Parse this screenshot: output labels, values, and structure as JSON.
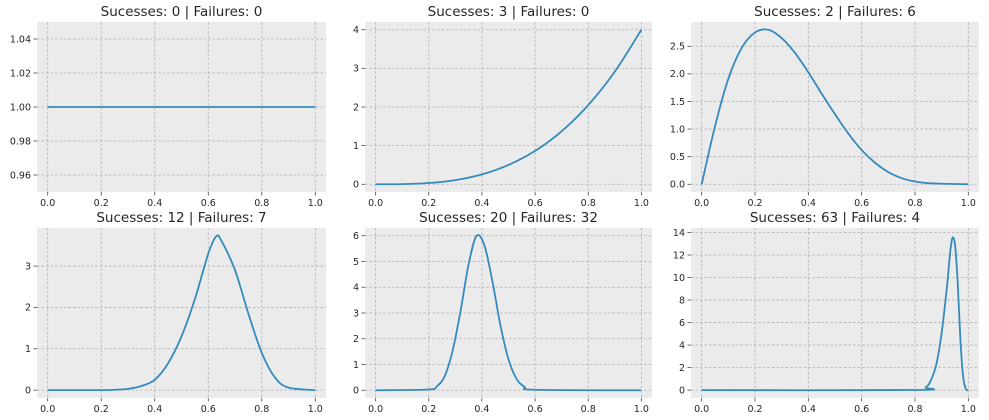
{
  "chart_data": [
    {
      "type": "line",
      "title": "Sucesses: 0 | Failures: 0",
      "successes": 0,
      "failures": 0,
      "xlim": [
        0.0,
        1.0
      ],
      "ylim": [
        0.95,
        1.05
      ],
      "xticks": [
        "0.0",
        "0.2",
        "0.4",
        "0.6",
        "0.8",
        "1.0"
      ],
      "yticks": [
        "0.96",
        "0.98",
        "1.00",
        "1.02",
        "1.04"
      ],
      "x": [
        0.0,
        0.1,
        0.2,
        0.3,
        0.4,
        0.5,
        0.6,
        0.7,
        0.8,
        0.9,
        1.0
      ],
      "y": [
        1.0,
        1.0,
        1.0,
        1.0,
        1.0,
        1.0,
        1.0,
        1.0,
        1.0,
        1.0,
        1.0
      ],
      "grid": true,
      "color": "#348abd"
    },
    {
      "type": "line",
      "title": "Sucesses: 3 | Failures: 0",
      "successes": 3,
      "failures": 0,
      "xlim": [
        0.0,
        1.0
      ],
      "ylim": [
        -0.2,
        4.2
      ],
      "xticks": [
        "0.0",
        "0.2",
        "0.4",
        "0.6",
        "0.8",
        "1.0"
      ],
      "yticks": [
        "0",
        "1",
        "2",
        "3",
        "4"
      ],
      "x": [
        0.0,
        0.1,
        0.2,
        0.3,
        0.4,
        0.5,
        0.6,
        0.7,
        0.8,
        0.9,
        1.0
      ],
      "y": [
        0.0,
        0.004,
        0.032,
        0.108,
        0.256,
        0.5,
        0.864,
        1.372,
        2.048,
        2.916,
        4.0
      ],
      "grid": true,
      "color": "#348abd"
    },
    {
      "type": "line",
      "title": "Sucesses: 2 | Failures: 6",
      "successes": 2,
      "failures": 6,
      "xlim": [
        0.0,
        1.0
      ],
      "ylim": [
        -0.14,
        2.94
      ],
      "xticks": [
        "0.0",
        "0.2",
        "0.4",
        "0.6",
        "0.8",
        "1.0"
      ],
      "yticks": [
        "0.0",
        "0.5",
        "1.0",
        "1.5",
        "2.0",
        "2.5"
      ],
      "x": [
        0.0,
        0.05,
        0.1,
        0.15,
        0.2,
        0.25,
        0.3,
        0.35,
        0.4,
        0.45,
        0.5,
        0.55,
        0.6,
        0.65,
        0.7,
        0.75,
        0.8,
        0.85,
        0.9,
        1.0
      ],
      "y": [
        0.0,
        1.05,
        1.91,
        2.47,
        2.75,
        2.8,
        2.65,
        2.38,
        2.03,
        1.64,
        1.27,
        0.92,
        0.62,
        0.39,
        0.22,
        0.11,
        0.05,
        0.02,
        0.01,
        0.0
      ],
      "grid": true,
      "color": "#348abd"
    },
    {
      "type": "line",
      "title": "Sucesses: 12 | Failures: 7",
      "successes": 12,
      "failures": 7,
      "xlim": [
        0.0,
        1.0
      ],
      "ylim": [
        -0.19,
        3.92
      ],
      "xticks": [
        "0.0",
        "0.2",
        "0.4",
        "0.6",
        "0.8",
        "1.0"
      ],
      "yticks": [
        "0",
        "1",
        "2",
        "3"
      ],
      "x": [
        0.0,
        0.2,
        0.25,
        0.3,
        0.35,
        0.4,
        0.45,
        0.5,
        0.55,
        0.6,
        0.63,
        0.65,
        0.7,
        0.75,
        0.8,
        0.85,
        0.9,
        1.0
      ],
      "y": [
        0.0,
        0.001,
        0.01,
        0.03,
        0.1,
        0.25,
        0.65,
        1.3,
        2.2,
        3.3,
        3.72,
        3.6,
        2.9,
        1.85,
        0.9,
        0.3,
        0.06,
        0.0
      ],
      "grid": true,
      "color": "#348abd"
    },
    {
      "type": "line",
      "title": "Sucesses: 20 | Failures: 32",
      "successes": 20,
      "failures": 32,
      "xlim": [
        0.0,
        1.0
      ],
      "ylim": [
        -0.3,
        6.3
      ],
      "xticks": [
        "0.0",
        "0.2",
        "0.4",
        "0.6",
        "0.8",
        "1.0"
      ],
      "yticks": [
        "0",
        "1",
        "2",
        "3",
        "4",
        "5",
        "6"
      ],
      "x": [
        0.0,
        0.2,
        0.23,
        0.26,
        0.29,
        0.32,
        0.35,
        0.38,
        0.41,
        0.44,
        0.47,
        0.5,
        0.53,
        0.56,
        0.6,
        1.0
      ],
      "y": [
        0.0,
        0.03,
        0.15,
        0.55,
        1.55,
        3.1,
        4.9,
        6.0,
        5.6,
        4.2,
        2.5,
        1.2,
        0.45,
        0.14,
        0.02,
        0.0
      ],
      "grid": true,
      "color": "#348abd"
    },
    {
      "type": "line",
      "title": "Sucesses: 63 | Failures: 4",
      "successes": 63,
      "failures": 4,
      "xlim": [
        0.0,
        1.0
      ],
      "ylim": [
        -0.7,
        14.4
      ],
      "xticks": [
        "0.0",
        "0.2",
        "0.4",
        "0.6",
        "0.8",
        "1.0"
      ],
      "yticks": [
        "0",
        "2",
        "4",
        "6",
        "8",
        "10",
        "12",
        "14"
      ],
      "x": [
        0.0,
        0.8,
        0.84,
        0.86,
        0.88,
        0.9,
        0.92,
        0.93,
        0.94,
        0.95,
        0.96,
        0.97,
        0.98,
        0.99,
        1.0
      ],
      "y": [
        0.0,
        0.01,
        0.25,
        0.9,
        2.3,
        5.1,
        9.2,
        11.8,
        13.5,
        12.9,
        9.6,
        4.6,
        1.3,
        0.12,
        0.0
      ],
      "grid": true,
      "color": "#348abd"
    }
  ]
}
